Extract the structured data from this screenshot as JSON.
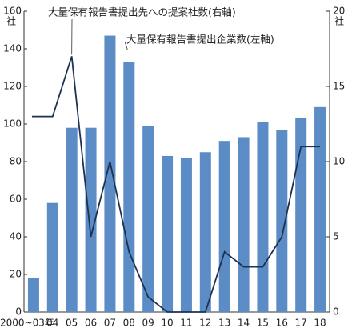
{
  "chart_data": {
    "type": "bar_line",
    "categories": [
      "2000~03年",
      "04",
      "05",
      "06",
      "07",
      "08",
      "09",
      "10",
      "11",
      "12",
      "13",
      "14",
      "15",
      "16",
      "17",
      "18"
    ],
    "series": [
      {
        "name": "大量保有報告書提出企業数(左軸)",
        "type": "bar",
        "color": "#5b8cc6",
        "values": [
          18,
          58,
          98,
          98,
          147,
          133,
          99,
          83,
          82,
          85,
          91,
          93,
          101,
          97,
          103,
          109
        ]
      },
      {
        "name": "大量保有報告書提出先への提案社数(右軸)",
        "type": "line",
        "axis": "y2",
        "color": "#1d3150",
        "values": [
          13,
          13,
          17,
          5,
          10,
          4,
          1,
          0,
          0,
          0,
          4,
          3,
          3,
          5,
          11,
          11
        ]
      }
    ],
    "ylim": [
      0,
      160
    ],
    "yticks": [
      0,
      20,
      40,
      60,
      80,
      100,
      120,
      140,
      160
    ],
    "y_unit": "社",
    "y2lim": [
      0,
      20
    ],
    "y2ticks": [
      0,
      5,
      10,
      15,
      20
    ],
    "y2_unit": "社",
    "grid": false
  }
}
